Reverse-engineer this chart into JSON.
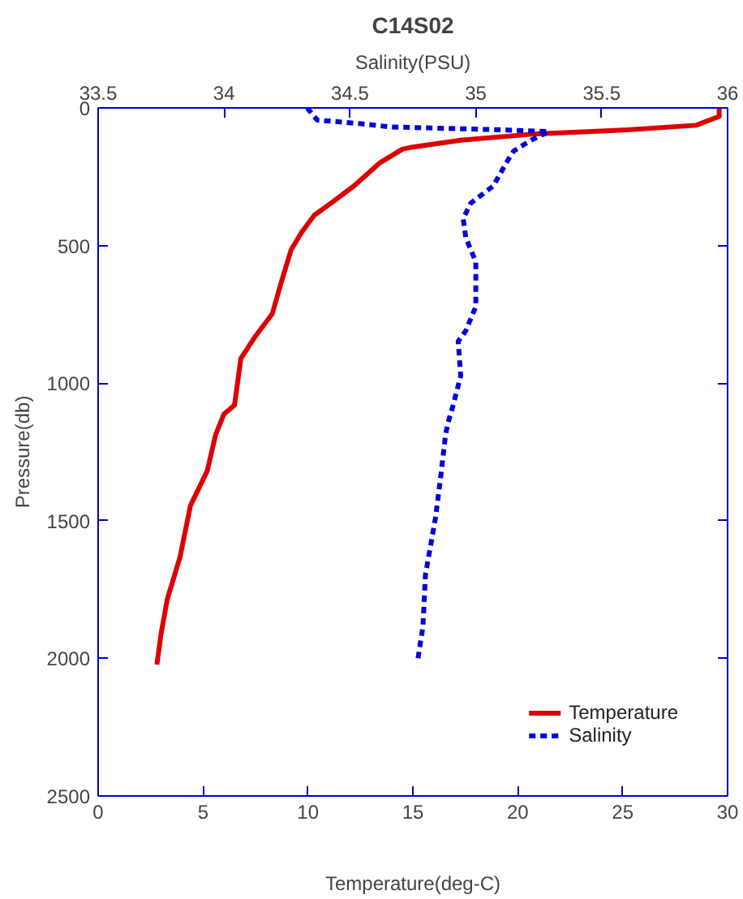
{
  "chart_data": {
    "type": "line",
    "title": "C14S02",
    "xlabel": "Temperature(deg-C)",
    "x2label": "Salinity(PSU)",
    "ylabel": "Pressure(db)",
    "xlim": [
      0,
      30
    ],
    "xticks": [
      0,
      5,
      10,
      15,
      20,
      25,
      30
    ],
    "x2lim": [
      33.5,
      36
    ],
    "x2ticks": [
      33.5,
      34,
      34.5,
      35,
      35.5,
      36
    ],
    "ylim": [
      2500,
      0
    ],
    "yticks": [
      0,
      500,
      1000,
      1500,
      2000,
      2500
    ],
    "grid": false,
    "legend": "bottom right",
    "marker": "none",
    "series": [
      {
        "name": "Temperature",
        "color": "#dd0000",
        "line_style": "solid",
        "x": [
          29.6,
          29.6,
          28.5,
          25.1,
          20.9,
          17.3,
          15.0,
          14.5,
          13.4,
          12.2,
          11.1,
          10.3,
          9.7,
          9.2,
          8.7,
          8.3,
          7.5,
          6.8,
          6.5,
          6.0,
          5.6,
          5.2,
          4.4,
          3.9,
          3.3,
          3.0,
          2.8
        ],
        "values": [
          0,
          31,
          63,
          80,
          94,
          117,
          142,
          150,
          201,
          283,
          346,
          390,
          452,
          515,
          641,
          748,
          829,
          911,
          1080,
          1112,
          1187,
          1319,
          1445,
          1633,
          1784,
          1910,
          2023
        ]
      },
      {
        "name": "Salinity",
        "color": "#0000dd",
        "line_style": "dashed",
        "axis": "x2",
        "x": [
          34.33,
          34.37,
          34.54,
          34.66,
          35.12,
          35.29,
          35.22,
          35.15,
          35.12,
          35.07,
          34.98,
          34.95,
          34.96,
          35.0,
          35.0,
          34.96,
          34.93,
          34.94,
          34.91,
          34.89,
          34.88,
          34.86,
          34.84,
          34.8,
          34.79,
          34.77
        ],
        "values": [
          0,
          44,
          57,
          69,
          80,
          86,
          117,
          157,
          201,
          283,
          346,
          402,
          471,
          559,
          722,
          810,
          848,
          974,
          1080,
          1143,
          1187,
          1344,
          1489,
          1696,
          1884,
          2003
        ]
      }
    ]
  }
}
